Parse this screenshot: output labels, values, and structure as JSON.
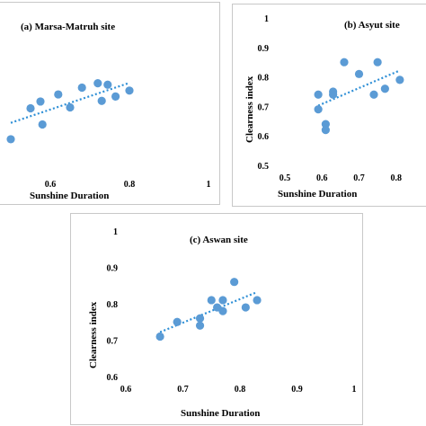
{
  "colors": {
    "marker": "#5b9bd5",
    "trendline": "#2e8fd6",
    "axis": "#000000"
  },
  "chart_data": [
    {
      "type": "scatter",
      "title": "(a) Marsa-Matruh site",
      "xlabel": "Sunshine Duration",
      "ylabel": "",
      "xlim": [
        0.5,
        1.0
      ],
      "ylim": [
        0.5,
        1.0
      ],
      "xticks": [
        "0.6",
        "0.8",
        "1"
      ],
      "yticks": [],
      "trendline": "linear-dotted",
      "grid": false,
      "points": [
        {
          "x": 0.5,
          "y": 0.61
        },
        {
          "x": 0.55,
          "y": 0.715
        },
        {
          "x": 0.575,
          "y": 0.738
        },
        {
          "x": 0.58,
          "y": 0.66
        },
        {
          "x": 0.62,
          "y": 0.762
        },
        {
          "x": 0.65,
          "y": 0.718
        },
        {
          "x": 0.68,
          "y": 0.785
        },
        {
          "x": 0.72,
          "y": 0.8
        },
        {
          "x": 0.73,
          "y": 0.74
        },
        {
          "x": 0.745,
          "y": 0.795
        },
        {
          "x": 0.765,
          "y": 0.755
        },
        {
          "x": 0.8,
          "y": 0.775
        }
      ]
    },
    {
      "type": "scatter",
      "title": "(b) Asyut site",
      "xlabel": "Sunshine Duration",
      "ylabel": "Clearness index",
      "xlim": [
        0.5,
        0.9
      ],
      "ylim": [
        0.5,
        1.0
      ],
      "xticks": [
        "0.5",
        "0.6",
        "0.7",
        "0.8"
      ],
      "yticks": [
        "0.5",
        "0.6",
        "0.7",
        "0.8",
        "0.9",
        "1"
      ],
      "trendline": "linear-dotted",
      "grid": false,
      "points": [
        {
          "x": 0.59,
          "y": 0.74
        },
        {
          "x": 0.59,
          "y": 0.69
        },
        {
          "x": 0.61,
          "y": 0.64
        },
        {
          "x": 0.61,
          "y": 0.62
        },
        {
          "x": 0.63,
          "y": 0.75
        },
        {
          "x": 0.63,
          "y": 0.74
        },
        {
          "x": 0.66,
          "y": 0.85
        },
        {
          "x": 0.7,
          "y": 0.81
        },
        {
          "x": 0.74,
          "y": 0.74
        },
        {
          "x": 0.75,
          "y": 0.85
        },
        {
          "x": 0.77,
          "y": 0.76
        },
        {
          "x": 0.81,
          "y": 0.79
        }
      ]
    },
    {
      "type": "scatter",
      "title": "(c) Aswan site",
      "xlabel": "Sunshine Duration",
      "ylabel": "Clearness index",
      "xlim": [
        0.6,
        1.0
      ],
      "ylim": [
        0.6,
        1.0
      ],
      "xticks": [
        "0.6",
        "0.7",
        "0.8",
        "0.9",
        "1"
      ],
      "yticks": [
        "0.6",
        "0.7",
        "0.8",
        "0.9",
        "1"
      ],
      "trendline": "linear-dotted",
      "grid": false,
      "points": [
        {
          "x": 0.66,
          "y": 0.71
        },
        {
          "x": 0.69,
          "y": 0.75
        },
        {
          "x": 0.73,
          "y": 0.76
        },
        {
          "x": 0.73,
          "y": 0.74
        },
        {
          "x": 0.75,
          "y": 0.81
        },
        {
          "x": 0.76,
          "y": 0.79
        },
        {
          "x": 0.77,
          "y": 0.81
        },
        {
          "x": 0.77,
          "y": 0.78
        },
        {
          "x": 0.79,
          "y": 0.86
        },
        {
          "x": 0.81,
          "y": 0.79
        },
        {
          "x": 0.83,
          "y": 0.81
        }
      ]
    }
  ]
}
